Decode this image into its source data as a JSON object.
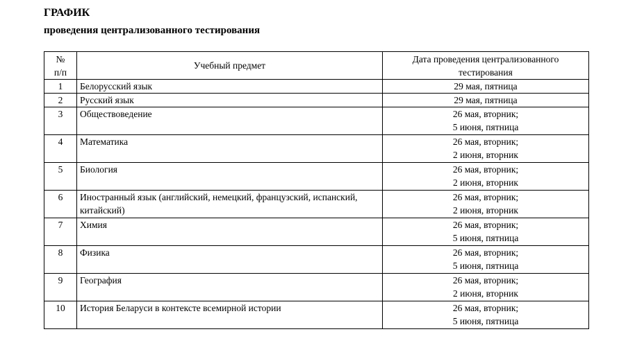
{
  "document": {
    "title": "ГРАФИК",
    "subtitle": "проведения централизованного тестирования"
  },
  "table": {
    "headers": {
      "num": "№\nп/п",
      "subject": "Учебный предмет",
      "date": "Дата проведения централизованного тестирования"
    },
    "rows": [
      {
        "num": "1",
        "subject": "Белорусский язык",
        "date": "29 мая, пятница"
      },
      {
        "num": "2",
        "subject": "Русский язык",
        "date": "29 мая, пятница"
      },
      {
        "num": "3",
        "subject": "Обществоведение",
        "date": "26 мая, вторник;\n5 июня, пятница"
      },
      {
        "num": "4",
        "subject": "Математика",
        "date": "26 мая, вторник;\n2 июня, вторник"
      },
      {
        "num": "5",
        "subject": "Биология",
        "date": "26 мая, вторник;\n2 июня, вторник"
      },
      {
        "num": "6",
        "subject": "Иностранный язык (английский, немецкий, французский, испанский, китайский)",
        "date": "26 мая, вторник;\n2 июня, вторник"
      },
      {
        "num": "7",
        "subject": "Химия",
        "date": "26 мая, вторник;\n5 июня, пятница"
      },
      {
        "num": "8",
        "subject": "Физика",
        "date": "26 мая, вторник;\n5 июня, пятница"
      },
      {
        "num": "9",
        "subject": "География",
        "date": "26 мая, вторник;\n2 июня, вторник"
      },
      {
        "num": "10",
        "subject": "История Беларуси в контексте всемирной истории",
        "date": "26 мая, вторник;\n5 июня, пятница"
      }
    ],
    "colors": {
      "text": "#000000",
      "border": "#000000",
      "background": "#ffffff"
    }
  }
}
